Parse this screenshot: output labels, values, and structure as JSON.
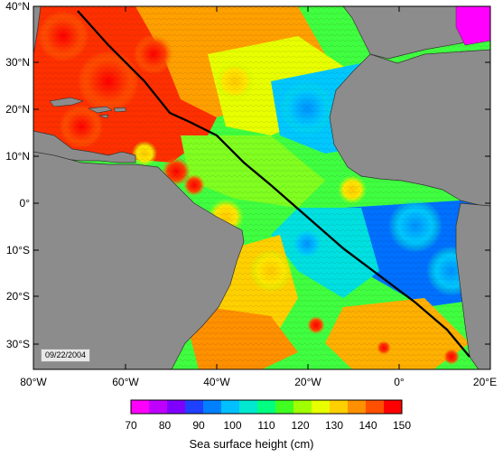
{
  "map": {
    "lat_labels": [
      "40°N",
      "30°N",
      "20°N",
      "10°N",
      "0°",
      "10°S",
      "20°S",
      "30°S"
    ],
    "lon_labels": [
      "80°W",
      "60°W",
      "40°W",
      "20°W",
      "0°",
      "20°E"
    ],
    "lat_range": [
      -35,
      40
    ],
    "lon_range": [
      -80,
      20
    ],
    "date": "09/22/2004",
    "track_color": "#000000",
    "land_color": "#8c8c8c"
  },
  "colorbar": {
    "title": "Sea surface height (cm)",
    "ticks": [
      "70",
      "80",
      "90",
      "100",
      "110",
      "120",
      "130",
      "140",
      "150"
    ],
    "range": [
      70,
      150
    ],
    "colors": [
      "#ff00ff",
      "#c000ff",
      "#8000ff",
      "#2040ff",
      "#0080ff",
      "#00c0ff",
      "#00e8d0",
      "#00ff80",
      "#40ff20",
      "#a0ff00",
      "#e8ff00",
      "#ffd000",
      "#ff9000",
      "#ff5000",
      "#ff0000"
    ]
  }
}
